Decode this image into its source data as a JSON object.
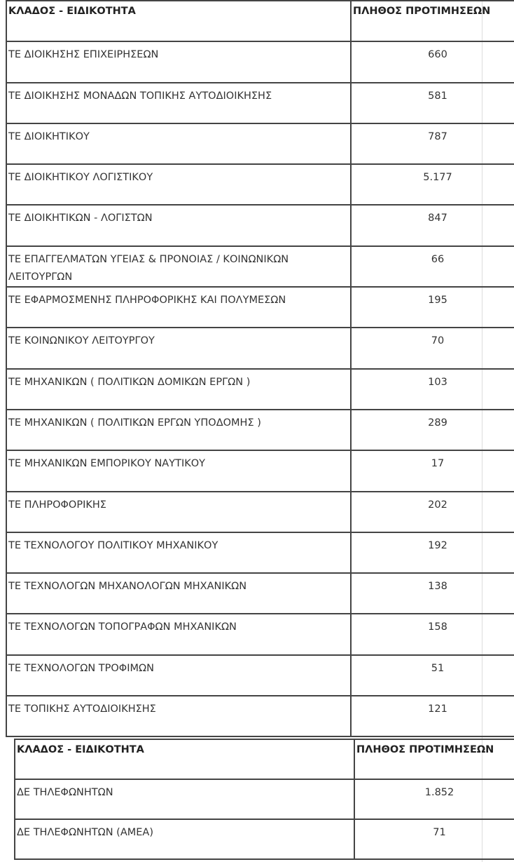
{
  "table1": {
    "headers": [
      "ΚΛΑΔΟΣ - ΕΙΔΙΚΟΤΗΤΑ",
      "ΠΛΗΘΟΣ ΠΡΟΤΙΜΗΣΕΩΝ"
    ],
    "rows": [
      [
        "ΤΕ ΔΙΟΙΚΗΣΗΣ ΕΠΙΧΕΙΡΗΣΕΩΝ",
        "660"
      ],
      [
        "ΤΕ ΔΙΟΙΚΗΣΗΣ ΜΟΝΑΔΩΝ ΤΟΠΙΚΗΣ ΑΥΤΟΔΙΟΙΚΗΣΗΣ",
        "581"
      ],
      [
        "ΤΕ ΔΙΟΙΚΗΤΙΚΟΥ",
        "787"
      ],
      [
        "ΤΕ ΔΙΟΙΚΗΤΙΚΟΥ ΛΟΓΙΣΤΙΚΟΥ",
        "5.177"
      ],
      [
        "ΤΕ ΔΙΟΙΚΗΤΙΚΩΝ - ΛΟΓΙΣΤΩΝ",
        "847"
      ],
      [
        "ΤΕ ΕΠΑΓΓΕΛΜΑΤΩΝ ΥΓΕΙΑΣ & ΠΡΟΝΟΙΑΣ / ΚΟΙΝΩΝΙΚΩΝ ΛΕΙΤΟΥΡΓΩΝ",
        "66"
      ],
      [
        "ΤΕ ΕΦΑΡΜΟΣΜΕΝΗΣ ΠΛΗΡΟΦΟΡΙΚΗΣ ΚΑΙ ΠΟΛΥΜΕΣΩΝ",
        "195"
      ],
      [
        "ΤΕ ΚΟΙΝΩΝΙΚΟΥ ΛΕΙΤΟΥΡΓΟΥ",
        "70"
      ],
      [
        "ΤΕ ΜΗΧΑΝΙΚΩΝ ( ΠΟΛΙΤΙΚΩΝ ΔΟΜΙΚΩΝ ΕΡΓΩΝ )",
        "103"
      ],
      [
        "ΤΕ ΜΗΧΑΝΙΚΩΝ ( ΠΟΛΙΤΙΚΩΝ ΕΡΓΩΝ ΥΠΟΔΟΜΗΣ )",
        "289"
      ],
      [
        "ΤΕ ΜΗΧΑΝΙΚΩΝ ΕΜΠΟΡΙΚΟΥ ΝΑΥΤΙΚΟΥ",
        "17"
      ],
      [
        "ΤΕ ΠΛΗΡΟΦΟΡΙΚΗΣ",
        "202"
      ],
      [
        "ΤΕ ΤΕΧΝΟΛΟΓΟΥ ΠΟΛΙΤΙΚΟΥ ΜΗΧΑΝΙΚΟΥ",
        "192"
      ],
      [
        "ΤΕ ΤΕΧΝΟΛΟΓΩΝ ΜΗΧΑΝΟΛΟΓΩΝ ΜΗΧΑΝΙΚΩΝ",
        "138"
      ],
      [
        "ΤΕ ΤΕΧΝΟΛΟΓΩΝ ΤΟΠΟΓΡΑΦΩΝ ΜΗΧΑΝΙΚΩΝ",
        "158"
      ],
      [
        "ΤΕ ΤΕΧΝΟΛΟΓΩΝ ΤΡΟΦΙΜΩΝ",
        "51"
      ],
      [
        "ΤΕ ΤΟΠΙΚΗΣ ΑΥΤΟΔΙΟΙΚΗΣΗΣ",
        "121"
      ]
    ]
  },
  "table2": {
    "headers": [
      "ΚΛΑΔΟΣ - ΕΙΔΙΚΟΤΗΤΑ",
      "ΠΛΗΘΟΣ ΠΡΟΤΙΜΗΣΕΩΝ"
    ],
    "rows": [
      [
        "ΔΕ ΤΗΛΕΦΩΝΗΤΩΝ",
        "1.852"
      ],
      [
        "ΔΕ ΤΗΛΕΦΩΝΗΤΩΝ (ΑΜΕΑ)",
        "71"
      ]
    ]
  }
}
